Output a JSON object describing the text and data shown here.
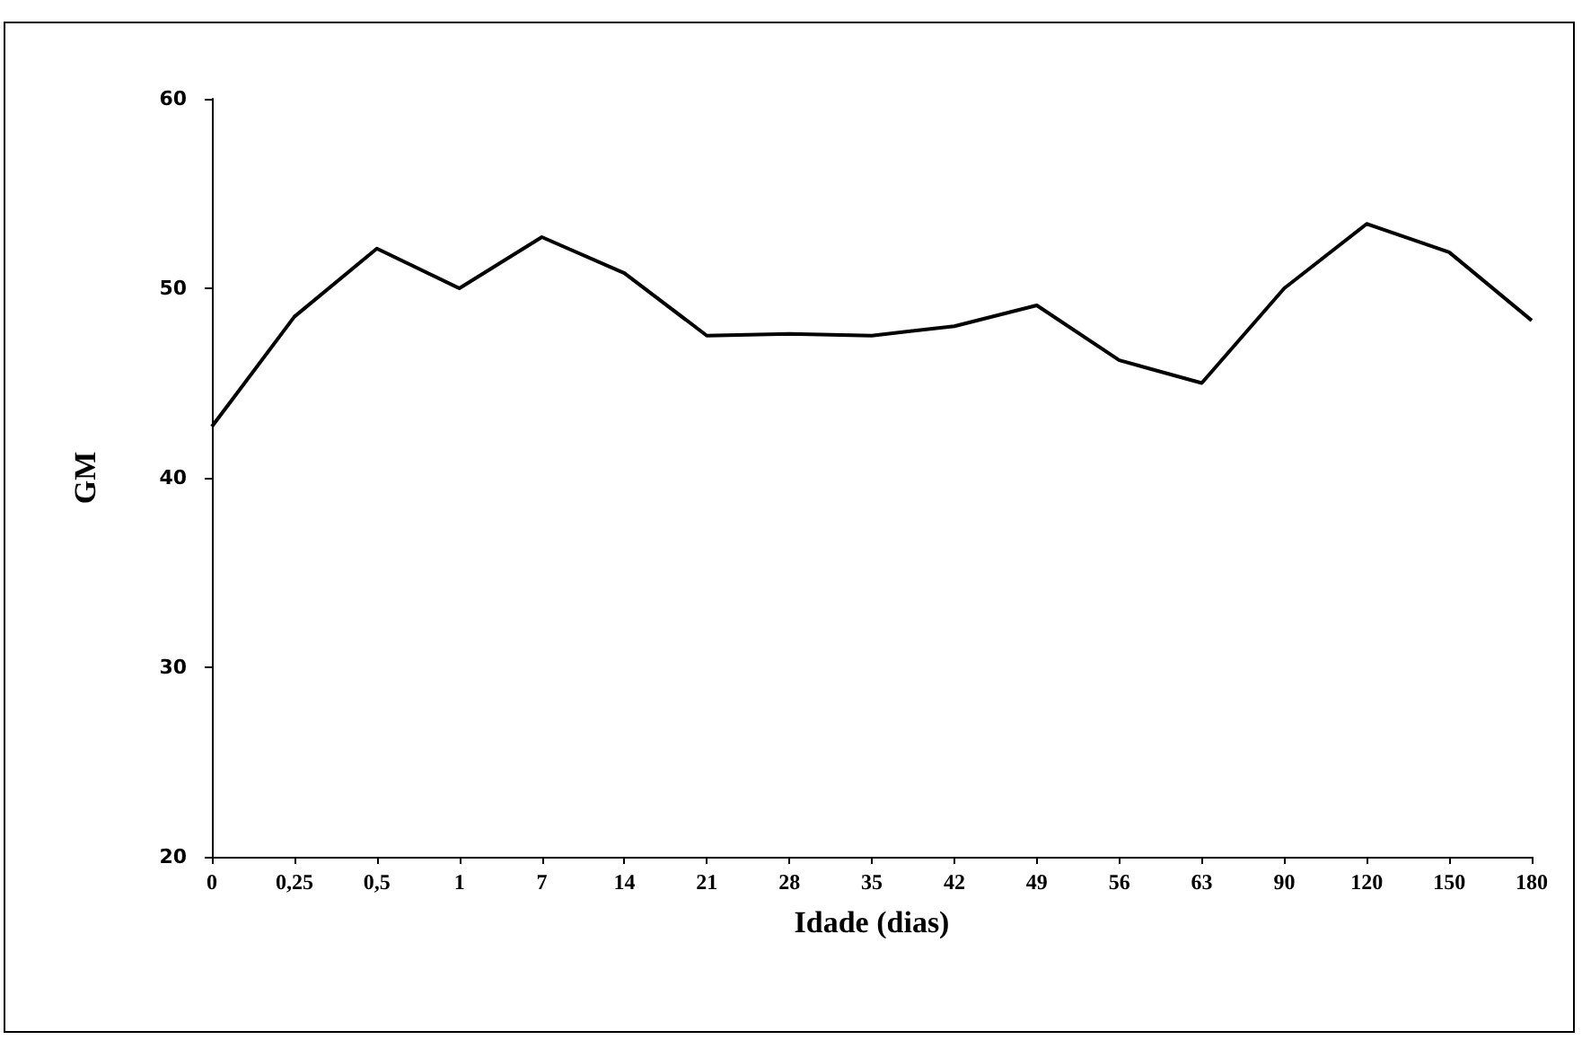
{
  "chart_data": {
    "type": "line",
    "xlabel": "Idade (dias)",
    "ylabel": "GM",
    "categories": [
      "0",
      "0,25",
      "0,5",
      "1",
      "7",
      "14",
      "21",
      "28",
      "35",
      "42",
      "49",
      "56",
      "63",
      "90",
      "120",
      "150",
      "180"
    ],
    "series": [
      {
        "color": "#000000",
        "values": [
          42.7,
          48.5,
          52.1,
          50.0,
          52.7,
          50.8,
          47.5,
          47.6,
          47.5,
          48.0,
          49.1,
          46.2,
          45.0,
          50.0,
          53.4,
          51.9,
          48.3
        ]
      }
    ],
    "ylim": [
      20,
      60
    ],
    "yticks": [
      20,
      30,
      40,
      50,
      60
    ],
    "grid": false,
    "marker": "none",
    "line_style": "solid"
  }
}
